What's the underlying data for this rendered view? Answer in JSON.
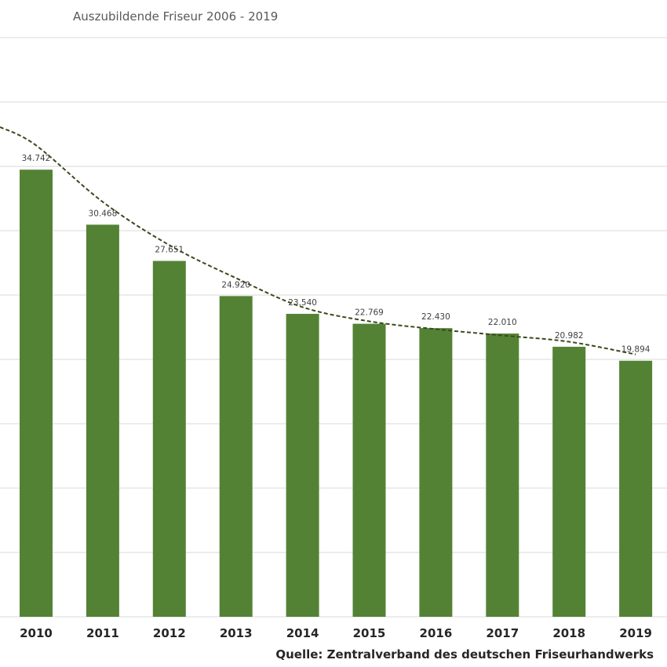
{
  "chart_data": {
    "type": "bar",
    "title": "Auszubildende Friseur 2006 - 2019",
    "categories": [
      "2010",
      "2011",
      "2012",
      "2013",
      "2014",
      "2015",
      "2016",
      "2017",
      "2018",
      "2019"
    ],
    "values": [
      34742,
      30468,
      27651,
      24920,
      23540,
      22769,
      22430,
      22010,
      20982,
      19894
    ],
    "value_labels": [
      "34.742",
      "30.468",
      "27.651",
      "24.920",
      "23.540",
      "22.769",
      "22.430",
      "22.010",
      "20.982",
      "19.894"
    ],
    "trendline": {
      "style": "dashed",
      "values": [
        36630,
        32240,
        28880,
        26320,
        24060,
        22960,
        22350,
        21860,
        21370,
        20390
      ]
    },
    "ylim": [
      0,
      45000
    ],
    "ystep": 5000,
    "grid": true,
    "xlabel": "",
    "ylabel": "",
    "bar_color": "#548235",
    "trend_color": "#3a4a1e",
    "source": "Quelle: Zentralverband des deutschen Friseurhandwerks"
  }
}
